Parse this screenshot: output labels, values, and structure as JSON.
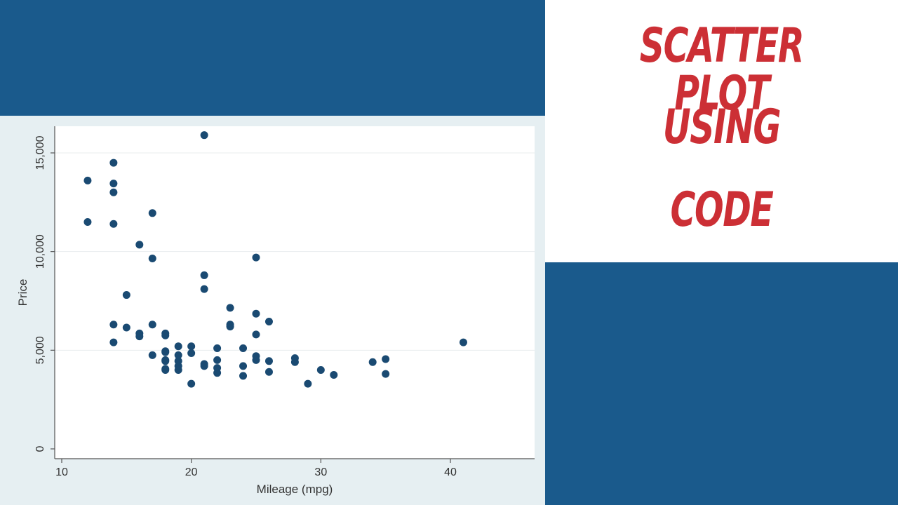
{
  "thumbnail": {
    "title_lines": [
      "SCATTER PLOT",
      "USING",
      "CODE"
    ],
    "colors": {
      "banner_blue": "#1a5a8c",
      "title_red": "#cc2f35",
      "marker": "#1a4a72",
      "frame": "#e6eff2"
    }
  },
  "chart_data": {
    "type": "scatter",
    "xlabel": "Mileage (mpg)",
    "ylabel": "Price",
    "xlim": [
      10,
      42
    ],
    "ylim": [
      0,
      16000
    ],
    "x_ticks": [
      10,
      20,
      30,
      40
    ],
    "x_tick_labels": [
      "10",
      "20",
      "30",
      "40"
    ],
    "y_ticks": [
      0,
      5000,
      10000,
      15000
    ],
    "y_tick_labels": [
      "0",
      "5,000",
      "10,000",
      "15,000"
    ],
    "grid": "horizontal",
    "points": [
      [
        12,
        13600
      ],
      [
        12,
        11500
      ],
      [
        14,
        14500
      ],
      [
        14,
        13450
      ],
      [
        14,
        13000
      ],
      [
        14,
        11400
      ],
      [
        14,
        6300
      ],
      [
        14,
        5400
      ],
      [
        15,
        7800
      ],
      [
        15,
        6150
      ],
      [
        16,
        10350
      ],
      [
        16,
        5850
      ],
      [
        16,
        5700
      ],
      [
        17,
        11950
      ],
      [
        17,
        9650
      ],
      [
        17,
        6300
      ],
      [
        17,
        4750
      ],
      [
        18,
        5850
      ],
      [
        18,
        5750
      ],
      [
        18,
        4950
      ],
      [
        18,
        4900
      ],
      [
        18,
        4500
      ],
      [
        18,
        4450
      ],
      [
        18,
        4050
      ],
      [
        18,
        4000
      ],
      [
        19,
        5200
      ],
      [
        19,
        4750
      ],
      [
        19,
        4450
      ],
      [
        19,
        4200
      ],
      [
        19,
        4000
      ],
      [
        20,
        5200
      ],
      [
        20,
        4850
      ],
      [
        20,
        3300
      ],
      [
        21,
        15900
      ],
      [
        21,
        8800
      ],
      [
        21,
        8100
      ],
      [
        21,
        4300
      ],
      [
        21,
        4200
      ],
      [
        22,
        5100
      ],
      [
        22,
        4500
      ],
      [
        22,
        4100
      ],
      [
        22,
        3850
      ],
      [
        23,
        7150
      ],
      [
        23,
        6300
      ],
      [
        23,
        6200
      ],
      [
        24,
        5100
      ],
      [
        24,
        4200
      ],
      [
        24,
        3700
      ],
      [
        25,
        9700
      ],
      [
        25,
        6850
      ],
      [
        25,
        5800
      ],
      [
        25,
        4700
      ],
      [
        25,
        4500
      ],
      [
        26,
        6450
      ],
      [
        26,
        4450
      ],
      [
        26,
        3900
      ],
      [
        28,
        4600
      ],
      [
        28,
        4400
      ],
      [
        29,
        3300
      ],
      [
        30,
        4000
      ],
      [
        31,
        3750
      ],
      [
        34,
        4400
      ],
      [
        35,
        4550
      ],
      [
        35,
        3800
      ],
      [
        41,
        5400
      ]
    ]
  }
}
